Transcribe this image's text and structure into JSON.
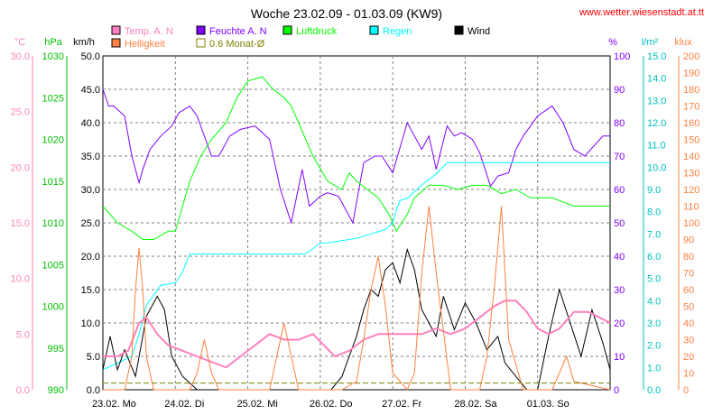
{
  "title": "Woche 23.02.09 - 01.03.09 (KW9)",
  "source": "www.wetter.wiesenstadt.at.tt",
  "chart_data": {
    "type": "line",
    "title": "Woche 23.02.09 - 01.03.09 (KW9)",
    "grid": true,
    "legend_position": "top",
    "legend": [
      {
        "label": "Temp. A. N",
        "color": "#ff80c0",
        "kind": "box"
      },
      {
        "label": "Feuchte A. N",
        "color": "#8000ff",
        "kind": "box"
      },
      {
        "label": "Luftdruck",
        "color": "#00ff00",
        "kind": "box"
      },
      {
        "label": "Regen",
        "color": "#00ffff",
        "kind": "box"
      },
      {
        "label": "Wind",
        "color": "#000000",
        "kind": "box"
      },
      {
        "label": "Helligkeit",
        "color": "#ff8040",
        "kind": "box"
      },
      {
        "label": "0.6 Monat-Ø",
        "color": "#808000",
        "kind": "outline"
      }
    ],
    "x_ticks": [
      "23.02.  Mo",
      "24.02.  Di",
      "25.02.  Mi",
      "26.02.  Do",
      "27.02.  Fr",
      "28.02.  Sa",
      "01.03.  So"
    ],
    "axes": {
      "temp": {
        "unit": "°C",
        "color": "#ff80c0",
        "ticks": [
          "0.0",
          "5.0",
          "10.0",
          "15.0",
          "20.0",
          "25.0",
          "30.0"
        ],
        "range": [
          0,
          30
        ]
      },
      "pressure": {
        "unit": "hPa",
        "color": "#00c000",
        "ticks": [
          "990",
          "995",
          "1000",
          "1005",
          "1010",
          "1015",
          "1020",
          "1025",
          "1030"
        ],
        "range": [
          990,
          1030
        ]
      },
      "wind": {
        "unit": "km/h",
        "color": "#000000",
        "ticks": [
          "0.0",
          "5.0",
          "10.0",
          "15.0",
          "20.0",
          "25.0",
          "30.0",
          "35.0",
          "40.0",
          "45.0",
          "50.0"
        ],
        "range": [
          0,
          50
        ]
      },
      "humidity": {
        "unit": "%",
        "color": "#8000ff",
        "ticks": [
          "0",
          "10",
          "20",
          "30",
          "40",
          "50",
          "60",
          "70",
          "80",
          "90",
          "100"
        ],
        "range": [
          0,
          100
        ]
      },
      "rain": {
        "unit": "l/m²",
        "color": "#00c0c0",
        "ticks": [
          "0.0",
          "1.0",
          "2.0",
          "3.0",
          "4.0",
          "5.0",
          "6.0",
          "7.0",
          "8.0",
          "9.0",
          "10.0",
          "11.0",
          "12.0",
          "13.0",
          "14.0",
          "15.0"
        ],
        "range": [
          0,
          15
        ]
      },
      "light": {
        "unit": "klux",
        "color": "#ff8040",
        "ticks": [
          "0",
          "10",
          "20",
          "30",
          "40",
          "50",
          "60",
          "70",
          "80",
          "90",
          "100",
          "110",
          "120",
          "130",
          "140",
          "150",
          "160",
          "170",
          "180",
          "190",
          "200"
        ],
        "range": [
          0,
          200
        ]
      }
    },
    "series": [
      {
        "name": "Feuchte A. N",
        "color": "#8000ff",
        "axis": "humidity",
        "x": [
          0,
          0.08,
          0.15,
          0.3,
          0.4,
          0.5,
          0.55,
          0.65,
          0.8,
          0.95,
          1.05,
          1.2,
          1.3,
          1.5,
          1.6,
          1.75,
          1.9,
          2.1,
          2.3,
          2.45,
          2.6,
          2.75,
          2.85,
          3.0,
          3.1,
          3.25,
          3.45,
          3.6,
          3.75,
          3.85,
          4.0,
          4.2,
          4.4,
          4.5,
          4.6,
          4.75,
          4.85,
          4.95,
          5.1,
          5.2,
          5.35,
          5.45,
          5.6,
          5.7,
          5.8,
          6.0,
          6.2,
          6.35,
          6.5,
          6.65,
          6.9,
          7.0
        ],
        "y": [
          90,
          85,
          85,
          82,
          70,
          62,
          66,
          72,
          76,
          79,
          83,
          85,
          82,
          70,
          70,
          76,
          78,
          79,
          75,
          60,
          50,
          66,
          55,
          58,
          59,
          58,
          50,
          68,
          70,
          70,
          65,
          80,
          72,
          76,
          66,
          79,
          76,
          77,
          75,
          71,
          61,
          64,
          65,
          72,
          76,
          82,
          85,
          80,
          72,
          70,
          76,
          76
        ]
      },
      {
        "name": "Luftdruck",
        "color": "#00ff00",
        "axis": "pressure",
        "x": [
          0,
          0.2,
          0.4,
          0.55,
          0.7,
          0.9,
          1.0,
          1.1,
          1.2,
          1.35,
          1.5,
          1.7,
          1.85,
          2.0,
          2.2,
          2.35,
          2.5,
          2.6,
          2.75,
          2.9,
          3.1,
          3.3,
          3.4,
          3.5,
          3.65,
          3.8,
          3.95,
          4.05,
          4.2,
          4.3,
          4.5,
          4.7,
          4.9,
          5.1,
          5.3,
          5.5,
          5.7,
          5.9,
          6.2,
          6.5,
          7.0
        ],
        "y": [
          1012,
          1010,
          1009,
          1008,
          1008,
          1009,
          1009,
          1012,
          1015,
          1018,
          1020,
          1022,
          1025,
          1027,
          1027.5,
          1026,
          1025,
          1024,
          1021,
          1018,
          1015,
          1014,
          1016,
          1015,
          1014,
          1013,
          1011,
          1009,
          1011,
          1013,
          1014.5,
          1014.5,
          1014,
          1014.5,
          1014.5,
          1013.5,
          1014,
          1013,
          1013,
          1012,
          1012
        ]
      },
      {
        "name": "Regen",
        "color": "#00ffff",
        "axis": "rain",
        "x": [
          0,
          0.4,
          0.5,
          0.6,
          0.8,
          1.0,
          1.1,
          1.2,
          2.0,
          2.8,
          3.0,
          3.1,
          3.3,
          3.5,
          3.7,
          3.9,
          4.0,
          4.05,
          4.1,
          4.2,
          4.3,
          4.4,
          4.6,
          4.75,
          5.0,
          5.5,
          6.0,
          6.5,
          7.0
        ],
        "y": [
          0.9,
          1.5,
          2.5,
          3.8,
          4.7,
          4.8,
          5.3,
          6.1,
          6.1,
          6.1,
          6.6,
          6.6,
          6.7,
          6.8,
          7.0,
          7.2,
          7.5,
          8.1,
          8.5,
          8.6,
          8.9,
          9.2,
          9.7,
          10.2,
          10.2,
          10.2,
          10.2,
          10.2,
          10.2
        ]
      },
      {
        "name": "Wind",
        "color": "#000000",
        "axis": "wind",
        "x": [
          0,
          0.1,
          0.2,
          0.3,
          0.45,
          0.6,
          0.75,
          0.85,
          0.95,
          1.1,
          1.3,
          1.5,
          1.7,
          1.9,
          2.1,
          2.3,
          2.5,
          2.7,
          2.85,
          3.0,
          3.15,
          3.3,
          3.5,
          3.6,
          3.7,
          3.8,
          3.9,
          4.0,
          4.1,
          4.2,
          4.3,
          4.4,
          4.5,
          4.6,
          4.7,
          4.85,
          5.0,
          5.15,
          5.3,
          5.45,
          5.55,
          5.7,
          5.85,
          6.0,
          6.15,
          6.3,
          6.45,
          6.6,
          6.75,
          6.9,
          7.0
        ],
        "y": [
          3,
          8,
          3,
          6,
          2,
          11,
          14,
          12,
          5,
          2,
          0,
          0,
          0,
          0,
          0,
          0,
          0,
          0,
          0,
          0,
          0,
          2,
          8,
          12,
          15,
          14,
          18,
          19,
          16,
          21,
          18,
          12,
          10,
          8,
          14,
          9,
          13,
          10,
          6,
          8,
          4,
          2,
          0,
          0,
          8,
          15,
          10,
          5,
          12,
          7,
          3
        ]
      },
      {
        "name": "Temp. A. N",
        "color": "#ff80c0",
        "axis": "temp",
        "x": [
          0,
          0.2,
          0.35,
          0.5,
          0.6,
          0.75,
          0.9,
          1.1,
          1.3,
          1.5,
          1.7,
          1.9,
          2.1,
          2.3,
          2.5,
          2.7,
          2.9,
          3.05,
          3.2,
          3.4,
          3.6,
          3.8,
          4.0,
          4.2,
          4.4,
          4.6,
          4.8,
          5.0,
          5.2,
          5.4,
          5.55,
          5.7,
          5.85,
          6.0,
          6.15,
          6.3,
          6.5,
          6.7,
          6.85,
          7.0
        ],
        "y": [
          3,
          3,
          3.5,
          6,
          6.5,
          5,
          4,
          3.5,
          3,
          2.5,
          2,
          3,
          4,
          5,
          4.5,
          4.5,
          5,
          4,
          3,
          3.5,
          4.5,
          5,
          5,
          5,
          5,
          5.5,
          5,
          5.5,
          6.5,
          7.5,
          8,
          8,
          7,
          5.5,
          5,
          5.5,
          7,
          7,
          6.5,
          6
        ]
      },
      {
        "name": "Helligkeit",
        "color": "#ff8040",
        "axis": "light",
        "x": [
          0,
          0.3,
          0.4,
          0.45,
          0.5,
          0.55,
          0.6,
          0.7,
          1.0,
          1.2,
          1.3,
          1.4,
          1.5,
          1.6,
          2.0,
          2.3,
          2.4,
          2.5,
          2.6,
          2.7,
          3.0,
          3.3,
          3.5,
          3.6,
          3.7,
          3.8,
          3.9,
          4.0,
          4.2,
          4.3,
          4.4,
          4.5,
          4.6,
          4.8,
          5.0,
          5.2,
          5.3,
          5.4,
          5.5,
          5.6,
          5.8,
          6.0,
          6.2,
          6.3,
          6.4,
          6.5,
          7.0
        ],
        "y": [
          0,
          0,
          20,
          60,
          85,
          60,
          20,
          0,
          0,
          0,
          10,
          30,
          10,
          0,
          0,
          0,
          20,
          40,
          20,
          0,
          0,
          0,
          5,
          30,
          60,
          80,
          50,
          10,
          0,
          10,
          70,
          110,
          70,
          0,
          0,
          0,
          20,
          60,
          110,
          30,
          0,
          0,
          0,
          10,
          20,
          5,
          0
        ]
      },
      {
        "name": "0.6 Monat-Ø",
        "color": "#808000",
        "axis": "temp",
        "dashed": true,
        "x": [
          0,
          7.0
        ],
        "y": [
          0.6,
          0.6
        ]
      }
    ]
  }
}
